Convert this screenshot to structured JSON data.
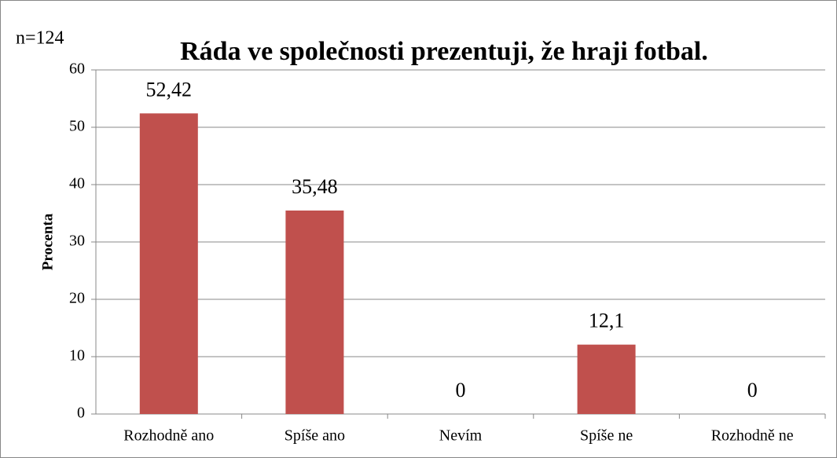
{
  "chart_data": {
    "type": "bar",
    "title": "Ráda ve společnosti prezentuji, že hraji fotbal.",
    "annotation": "n=124",
    "y_label": "Procenta",
    "categories": [
      "Rozhodně ano",
      "Spíše ano",
      "Nevím",
      "Spíše ne",
      "Rozhodně ne"
    ],
    "values": [
      52.42,
      35.48,
      0,
      12.1,
      0
    ],
    "value_labels": [
      "52,42",
      "35,48",
      "0",
      "12,1",
      "0"
    ],
    "color": "#c0504d",
    "ylim": [
      0,
      60
    ],
    "yticks": [
      0,
      10,
      20,
      30,
      40,
      50,
      60
    ],
    "grid": true
  }
}
